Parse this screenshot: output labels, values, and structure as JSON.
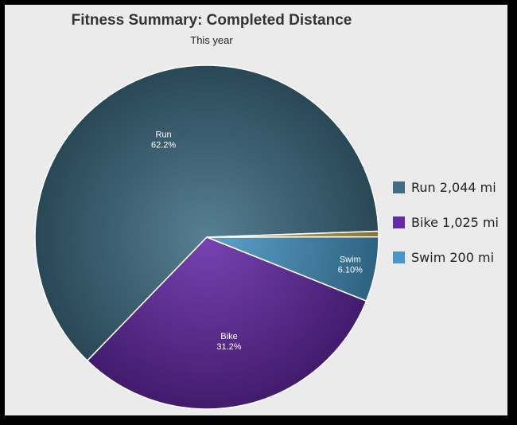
{
  "chart_data": {
    "type": "pie",
    "title": "Fitness Summary: Completed Distance",
    "subtitle": "This year",
    "unit": "mi",
    "slices": [
      {
        "label": "Run",
        "value": 2044,
        "percent_label": "62.2%",
        "legend_label": "Run 2,044 mi",
        "color": "#3f6e84"
      },
      {
        "label": "Bike",
        "value": 1025,
        "percent_label": "31.2%",
        "legend_label": "Bike 1,025 mi",
        "color": "#6629a7"
      },
      {
        "label": "Swim",
        "value": 200,
        "percent_label": "6.10%",
        "legend_label": "Swim 200 mi",
        "color": "#4896c6"
      },
      {
        "label": "",
        "value": 17,
        "percent_label": "",
        "legend_label": "",
        "color": "#c8b34a"
      }
    ],
    "legend_position": "right"
  },
  "colors": {
    "background": "#ebebeb",
    "frame": "#000000"
  }
}
